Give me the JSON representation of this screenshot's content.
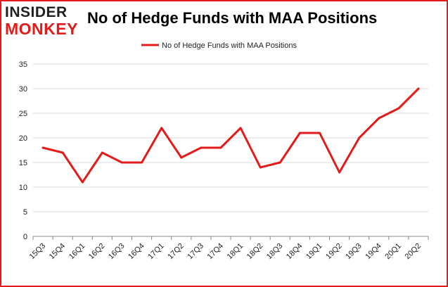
{
  "logo": {
    "line1": "INSIDER",
    "line2": "MONKEY"
  },
  "colors": {
    "series": "#e31b1b",
    "frame": "#e31b1b",
    "grid": "#d9d9d9",
    "axis": "#888888"
  },
  "chart_data": {
    "type": "line",
    "title": "No of Hedge Funds with MAA Positions",
    "categories": [
      "15Q3",
      "15Q4",
      "16Q1",
      "16Q2",
      "16Q3",
      "16Q4",
      "17Q1",
      "17Q2",
      "17Q3",
      "17Q4",
      "18Q1",
      "18Q2",
      "18Q3",
      "18Q4",
      "19Q1",
      "19Q2",
      "19Q3",
      "19Q4",
      "20Q1",
      "20Q2"
    ],
    "series": [
      {
        "name": "No of Hedge Funds with MAA Positions",
        "values": [
          18,
          17,
          11,
          17,
          15,
          15,
          22,
          16,
          18,
          18,
          22,
          14,
          15,
          21,
          21,
          13,
          20,
          24,
          26,
          30
        ]
      }
    ],
    "ylim": [
      0,
      35
    ],
    "yticks": [
      0,
      5,
      10,
      15,
      20,
      25,
      30,
      35
    ],
    "grid": true,
    "legend": "top-center"
  }
}
